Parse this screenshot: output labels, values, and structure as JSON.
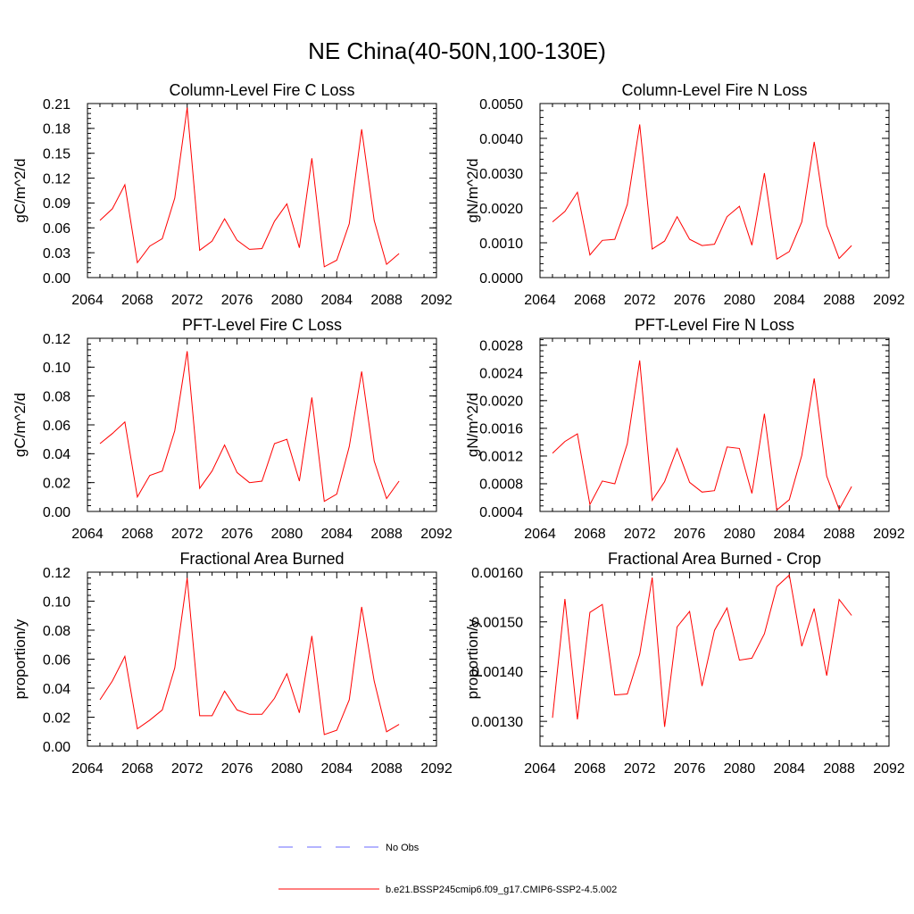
{
  "figure": {
    "title": "NE China(40-50N,100-130E)",
    "line_color": "#ff0000",
    "obs_color": "#6a6aff"
  },
  "legend": {
    "obs_label": "No Obs",
    "model_label": "b.e21.BSSP245cmip6.f09_g17.CMIP6-SSP2-4.5.002"
  },
  "chart_data": [
    {
      "type": "line",
      "title": "Column-Level Fire C Loss",
      "ylabel": "gC/m^2/d",
      "xlim": [
        2064,
        2092
      ],
      "ylim": [
        0,
        0.21
      ],
      "xticks": [
        "2064",
        "2068",
        "2072",
        "2076",
        "2080",
        "2084",
        "2088",
        "2092"
      ],
      "yticks": [
        "0.00",
        "0.03",
        "0.06",
        "0.09",
        "0.12",
        "0.15",
        "0.18",
        "0.21"
      ],
      "series": [
        {
          "x": [
            2065,
            2066,
            2067,
            2068,
            2069,
            2070,
            2071,
            2072,
            2073,
            2074,
            2075,
            2076,
            2077,
            2078,
            2079,
            2080,
            2081,
            2082,
            2083,
            2084,
            2085,
            2086,
            2087,
            2088,
            2089
          ],
          "values": [
            0.069,
            0.083,
            0.112,
            0.018,
            0.038,
            0.047,
            0.096,
            0.205,
            0.033,
            0.044,
            0.071,
            0.045,
            0.034,
            0.035,
            0.068,
            0.089,
            0.036,
            0.144,
            0.013,
            0.021,
            0.065,
            0.179,
            0.069,
            0.016,
            0.029
          ]
        }
      ]
    },
    {
      "type": "line",
      "title": "Column-Level Fire N Loss",
      "ylabel": "gN/m^2/d",
      "xlim": [
        2064,
        2092
      ],
      "ylim": [
        0,
        0.005
      ],
      "xticks": [
        "2064",
        "2068",
        "2072",
        "2076",
        "2080",
        "2084",
        "2088",
        "2092"
      ],
      "yticks": [
        "0.0000",
        "0.0010",
        "0.0020",
        "0.0030",
        "0.0040",
        "0.0050"
      ],
      "series": [
        {
          "x": [
            2065,
            2066,
            2067,
            2068,
            2069,
            2070,
            2071,
            2072,
            2073,
            2074,
            2075,
            2076,
            2077,
            2078,
            2079,
            2080,
            2081,
            2082,
            2083,
            2084,
            2085,
            2086,
            2087,
            2088,
            2089
          ],
          "values": [
            0.0016,
            0.0019,
            0.00245,
            0.00065,
            0.00107,
            0.0011,
            0.0021,
            0.0044,
            0.00082,
            0.00105,
            0.00175,
            0.0011,
            0.00092,
            0.00096,
            0.00175,
            0.00205,
            0.00093,
            0.003,
            0.00053,
            0.00075,
            0.0016,
            0.0039,
            0.0015,
            0.00055,
            0.00092
          ]
        }
      ]
    },
    {
      "type": "line",
      "title": "PFT-Level Fire C Loss",
      "ylabel": "gC/m^2/d",
      "xlim": [
        2064,
        2092
      ],
      "ylim": [
        0,
        0.12
      ],
      "xticks": [
        "2064",
        "2068",
        "2072",
        "2076",
        "2080",
        "2084",
        "2088",
        "2092"
      ],
      "yticks": [
        "0.00",
        "0.02",
        "0.04",
        "0.06",
        "0.08",
        "0.10",
        "0.12"
      ],
      "series": [
        {
          "x": [
            2065,
            2066,
            2067,
            2068,
            2069,
            2070,
            2071,
            2072,
            2073,
            2074,
            2075,
            2076,
            2077,
            2078,
            2079,
            2080,
            2081,
            2082,
            2083,
            2084,
            2085,
            2086,
            2087,
            2088,
            2089
          ],
          "values": [
            0.047,
            0.054,
            0.062,
            0.01,
            0.025,
            0.028,
            0.056,
            0.111,
            0.016,
            0.028,
            0.046,
            0.027,
            0.02,
            0.021,
            0.047,
            0.05,
            0.021,
            0.079,
            0.007,
            0.012,
            0.045,
            0.097,
            0.035,
            0.009,
            0.021
          ]
        }
      ]
    },
    {
      "type": "line",
      "title": "PFT-Level Fire N Loss",
      "ylabel": "gN/m^2/d",
      "xlim": [
        2064,
        2092
      ],
      "ylim": [
        0.0004,
        0.0029
      ],
      "xticks": [
        "2064",
        "2068",
        "2072",
        "2076",
        "2080",
        "2084",
        "2088",
        "2092"
      ],
      "yticks": [
        "0.0004",
        "0.0008",
        "0.0012",
        "0.0016",
        "0.0020",
        "0.0024",
        "0.0028"
      ],
      "series": [
        {
          "x": [
            2065,
            2066,
            2067,
            2068,
            2069,
            2070,
            2071,
            2072,
            2073,
            2074,
            2075,
            2076,
            2077,
            2078,
            2079,
            2080,
            2081,
            2082,
            2083,
            2084,
            2085,
            2086,
            2087,
            2088,
            2089
          ],
          "values": [
            0.00124,
            0.00141,
            0.00152,
            0.0005,
            0.00084,
            0.0008,
            0.00138,
            0.00258,
            0.00056,
            0.00083,
            0.00131,
            0.00082,
            0.00068,
            0.0007,
            0.00133,
            0.00131,
            0.00066,
            0.00181,
            0.00042,
            0.00057,
            0.00121,
            0.00232,
            0.00091,
            0.00043,
            0.00076
          ]
        }
      ]
    },
    {
      "type": "line",
      "title": "Fractional Area Burned",
      "ylabel": "proportion/y",
      "xlim": [
        2064,
        2092
      ],
      "ylim": [
        0,
        0.12
      ],
      "xticks": [
        "2064",
        "2068",
        "2072",
        "2076",
        "2080",
        "2084",
        "2088",
        "2092"
      ],
      "yticks": [
        "0.00",
        "0.02",
        "0.04",
        "0.06",
        "0.08",
        "0.10",
        "0.12"
      ],
      "series": [
        {
          "x": [
            2065,
            2066,
            2067,
            2068,
            2069,
            2070,
            2071,
            2072,
            2073,
            2074,
            2075,
            2076,
            2077,
            2078,
            2079,
            2080,
            2081,
            2082,
            2083,
            2084,
            2085,
            2086,
            2087,
            2088,
            2089
          ],
          "values": [
            0.032,
            0.045,
            0.062,
            0.012,
            0.018,
            0.025,
            0.054,
            0.116,
            0.021,
            0.021,
            0.038,
            0.025,
            0.022,
            0.022,
            0.033,
            0.05,
            0.023,
            0.076,
            0.008,
            0.011,
            0.032,
            0.096,
            0.045,
            0.01,
            0.015
          ]
        }
      ]
    },
    {
      "type": "line",
      "title": "Fractional Area Burned - Crop",
      "ylabel": "proportion/y",
      "xlim": [
        2064,
        2092
      ],
      "ylim": [
        0.00125,
        0.0016
      ],
      "xticks": [
        "2064",
        "2068",
        "2072",
        "2076",
        "2080",
        "2084",
        "2088",
        "2092"
      ],
      "yticks": [
        "0.00130",
        "0.00140",
        "0.00150",
        "0.00160"
      ],
      "series": [
        {
          "x": [
            2065,
            2066,
            2067,
            2068,
            2069,
            2070,
            2071,
            2072,
            2073,
            2074,
            2075,
            2076,
            2077,
            2078,
            2079,
            2080,
            2081,
            2082,
            2083,
            2084,
            2085,
            2086,
            2087,
            2088,
            2089
          ],
          "values": [
            0.001307,
            0.001546,
            0.001304,
            0.001519,
            0.001535,
            0.001353,
            0.001355,
            0.001435,
            0.001589,
            0.001289,
            0.00149,
            0.001521,
            0.001371,
            0.001483,
            0.001528,
            0.001423,
            0.001427,
            0.001476,
            0.001571,
            0.001594,
            0.001451,
            0.001527,
            0.001392,
            0.001545,
            0.001513
          ]
        }
      ]
    }
  ]
}
